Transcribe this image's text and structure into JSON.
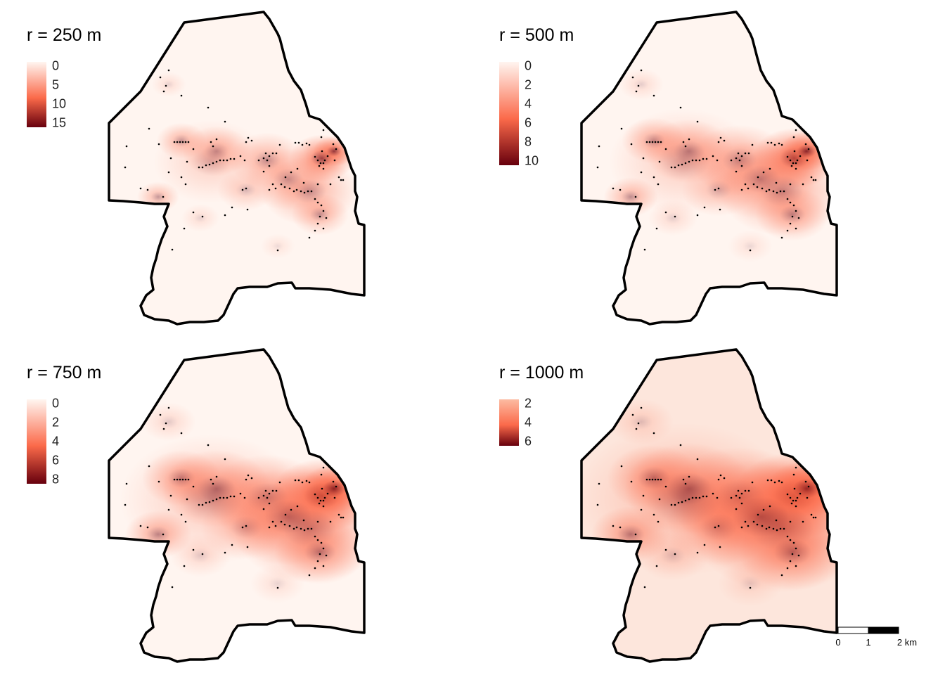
{
  "panels": [
    {
      "title": "r = 250 m",
      "legend_ticks": [
        "0",
        "5",
        "10",
        "15"
      ],
      "legend_max": 15,
      "hotspot_scale": 0.35
    },
    {
      "title": "r = 500 m",
      "legend_ticks": [
        "0",
        "2",
        "4",
        "6",
        "8",
        "10"
      ],
      "legend_max": 10,
      "hotspot_scale": 0.6
    },
    {
      "title": "r = 750 m",
      "legend_ticks": [
        "0",
        "2",
        "4",
        "6",
        "8"
      ],
      "legend_max": 8,
      "hotspot_scale": 0.85
    },
    {
      "title": "r = 1000 m",
      "legend_ticks": [
        "2",
        "4",
        "6"
      ],
      "legend_max": 6,
      "hotspot_scale": 1.1
    }
  ],
  "scalebar": {
    "labels": [
      "0",
      "1",
      "2 km"
    ]
  },
  "colors": {
    "low": "#fff5f0",
    "mid": "#fb6a4a",
    "high": "#67000d",
    "boundary": "#000000",
    "points": "#000000"
  }
}
